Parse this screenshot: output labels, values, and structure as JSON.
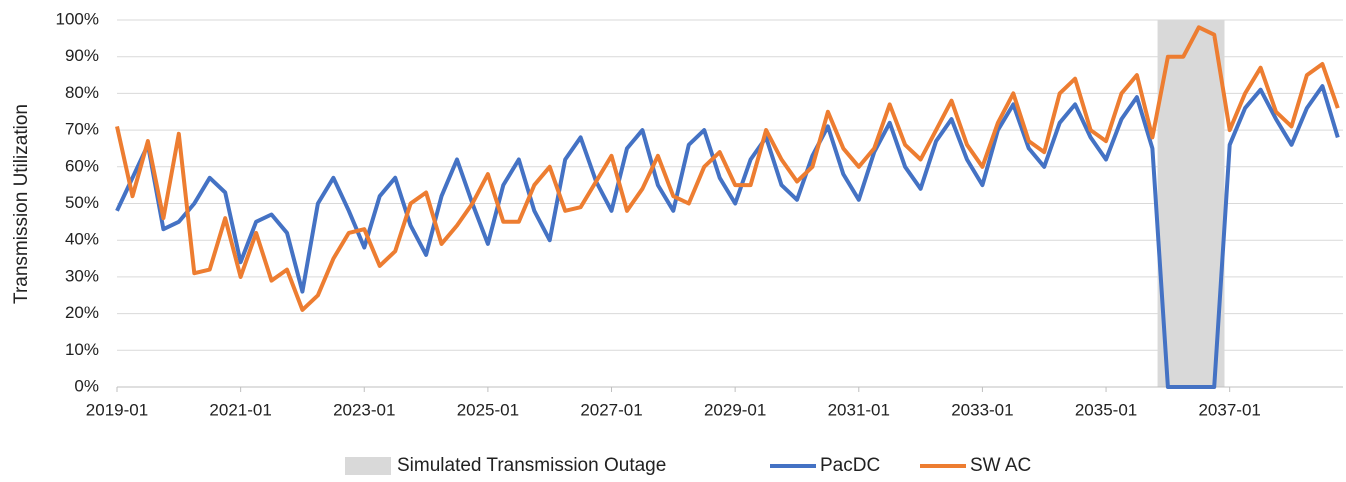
{
  "chart_data": {
    "type": "line",
    "y_axis_label": "Transmission Utilization",
    "x": [
      "2019-01",
      "2019-04",
      "2019-07",
      "2019-10",
      "2020-01",
      "2020-04",
      "2020-07",
      "2020-10",
      "2021-01",
      "2021-04",
      "2021-07",
      "2021-10",
      "2022-01",
      "2022-04",
      "2022-07",
      "2022-10",
      "2023-01",
      "2023-04",
      "2023-07",
      "2023-10",
      "2024-01",
      "2024-04",
      "2024-07",
      "2024-10",
      "2025-01",
      "2025-04",
      "2025-07",
      "2025-10",
      "2026-01",
      "2026-04",
      "2026-07",
      "2026-10",
      "2027-01",
      "2027-04",
      "2027-07",
      "2027-10",
      "2028-01",
      "2028-04",
      "2028-07",
      "2028-10",
      "2029-01",
      "2029-04",
      "2029-07",
      "2029-10",
      "2030-01",
      "2030-04",
      "2030-07",
      "2030-10",
      "2031-01",
      "2031-04",
      "2031-07",
      "2031-10",
      "2032-01",
      "2032-04",
      "2032-07",
      "2032-10",
      "2033-01",
      "2033-04",
      "2033-07",
      "2033-10",
      "2034-01",
      "2034-04",
      "2034-07",
      "2034-10",
      "2035-01",
      "2035-04",
      "2035-07",
      "2035-10",
      "2036-01",
      "2036-04",
      "2036-07",
      "2036-10",
      "2037-01",
      "2037-04",
      "2037-07",
      "2037-10",
      "2038-01",
      "2038-04",
      "2038-07",
      "2038-10"
    ],
    "series": [
      {
        "name": "PacDC",
        "color": "#4472c4",
        "values": [
          48,
          57,
          66,
          43,
          45,
          50,
          57,
          53,
          34,
          45,
          47,
          42,
          26,
          50,
          57,
          48,
          38,
          52,
          57,
          44,
          36,
          52,
          62,
          50,
          39,
          55,
          62,
          48,
          40,
          62,
          68,
          56,
          48,
          65,
          70,
          55,
          48,
          66,
          70,
          57,
          50,
          62,
          68,
          55,
          51,
          63,
          71,
          58,
          51,
          64,
          72,
          60,
          54,
          67,
          73,
          62,
          55,
          70,
          77,
          65,
          60,
          72,
          77,
          68,
          62,
          73,
          79,
          65,
          0,
          0,
          0,
          0,
          66,
          76,
          81,
          73,
          66,
          76,
          82,
          68
        ]
      },
      {
        "name": "SW AC",
        "color": "#ed7d31",
        "values": [
          71,
          52,
          67,
          46,
          69,
          31,
          32,
          46,
          30,
          42,
          29,
          32,
          21,
          25,
          35,
          42,
          43,
          33,
          37,
          50,
          53,
          39,
          44,
          50,
          58,
          45,
          45,
          55,
          60,
          48,
          49,
          56,
          63,
          48,
          54,
          63,
          52,
          50,
          60,
          64,
          55,
          55,
          70,
          62,
          56,
          60,
          75,
          65,
          60,
          65,
          77,
          66,
          62,
          70,
          78,
          66,
          60,
          72,
          80,
          67,
          64,
          80,
          84,
          70,
          67,
          80,
          85,
          68,
          90,
          90,
          98,
          96,
          70,
          80,
          87,
          75,
          71,
          85,
          88,
          76
        ]
      }
    ],
    "outage": {
      "name": "Simulated Transmission Outage",
      "color": "#d9d9d9",
      "x": [
        "2035-11",
        "2036-12"
      ]
    },
    "xlim": [
      "2019-01",
      "2038-11"
    ],
    "xticks": [
      "2019-01",
      "2021-01",
      "2023-01",
      "2025-01",
      "2027-01",
      "2029-01",
      "2031-01",
      "2033-01",
      "2035-01",
      "2037-01"
    ],
    "ylim": [
      0,
      100
    ],
    "yticks": [
      {
        "value": 0,
        "label": "0%"
      },
      {
        "value": 10,
        "label": "10%"
      },
      {
        "value": 20,
        "label": "20%"
      },
      {
        "value": 30,
        "label": "30%"
      },
      {
        "value": 40,
        "label": "40%"
      },
      {
        "value": 50,
        "label": "50%"
      },
      {
        "value": 60,
        "label": "60%"
      },
      {
        "value": 70,
        "label": "70%"
      },
      {
        "value": 80,
        "label": "80%"
      },
      {
        "value": 90,
        "label": "90%"
      },
      {
        "value": 100,
        "label": "100%"
      }
    ],
    "grid": true,
    "legend": "bottom"
  }
}
